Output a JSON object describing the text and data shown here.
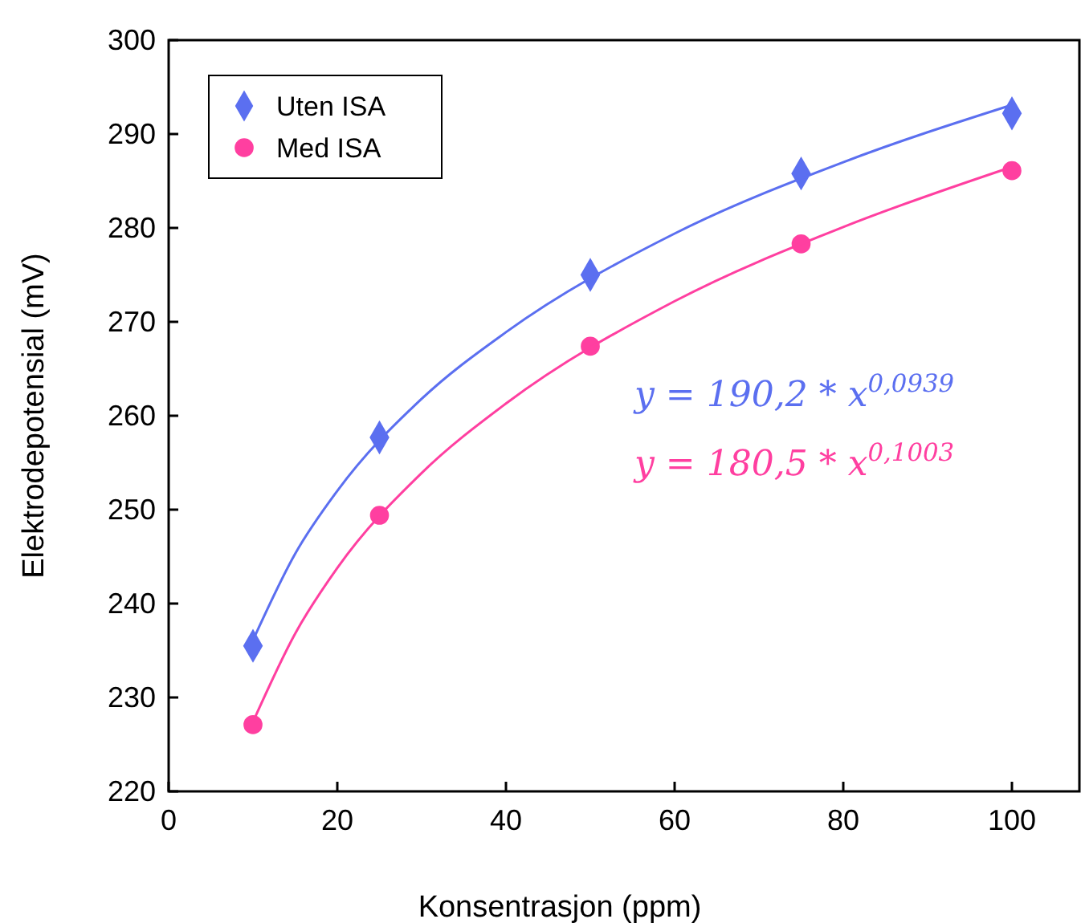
{
  "chart_data": {
    "type": "scatter",
    "xlabel": "Konsentrasjon (ppm)",
    "ylabel": "Elektrodepotensial (mV)",
    "xlim": [
      0,
      108
    ],
    "ylim": [
      220,
      300
    ],
    "xticks": [
      0,
      20,
      40,
      60,
      80,
      100
    ],
    "yticks": [
      220,
      230,
      240,
      250,
      260,
      270,
      280,
      290,
      300
    ],
    "grid": false,
    "legend": "top left",
    "series": [
      {
        "name": "Uten ISA",
        "marker": "diamond",
        "color": "#5b6ff0",
        "x": [
          10,
          25,
          50,
          75,
          100
        ],
        "values": [
          235.5,
          257.7,
          275.0,
          285.8,
          292.2
        ]
      },
      {
        "name": "Med ISA",
        "marker": "circle",
        "color": "#ff3fa0",
        "x": [
          10,
          25,
          50,
          75,
          100
        ],
        "values": [
          227.1,
          249.4,
          267.4,
          278.3,
          286.1
        ]
      },
      {
        "type": "line",
        "marker": "none",
        "color": "#5b6ff0",
        "x": [
          10,
          15,
          20,
          30,
          40,
          60,
          80,
          100
        ],
        "values": [
          236.1,
          245.3,
          252.0,
          261.8,
          268.9,
          279.4,
          287.0,
          293.1
        ]
      },
      {
        "type": "line",
        "marker": "none",
        "color": "#ff3fa0",
        "x": [
          10,
          15,
          20,
          30,
          40,
          60,
          80,
          100
        ],
        "values": [
          227.4,
          236.8,
          243.8,
          253.9,
          261.3,
          272.2,
          280.1,
          286.5
        ]
      }
    ],
    "annotations": [
      "y = 190,2 * x$^{0,0939}$",
      "y = 180,5 * x$^{0,1003}$"
    ]
  }
}
